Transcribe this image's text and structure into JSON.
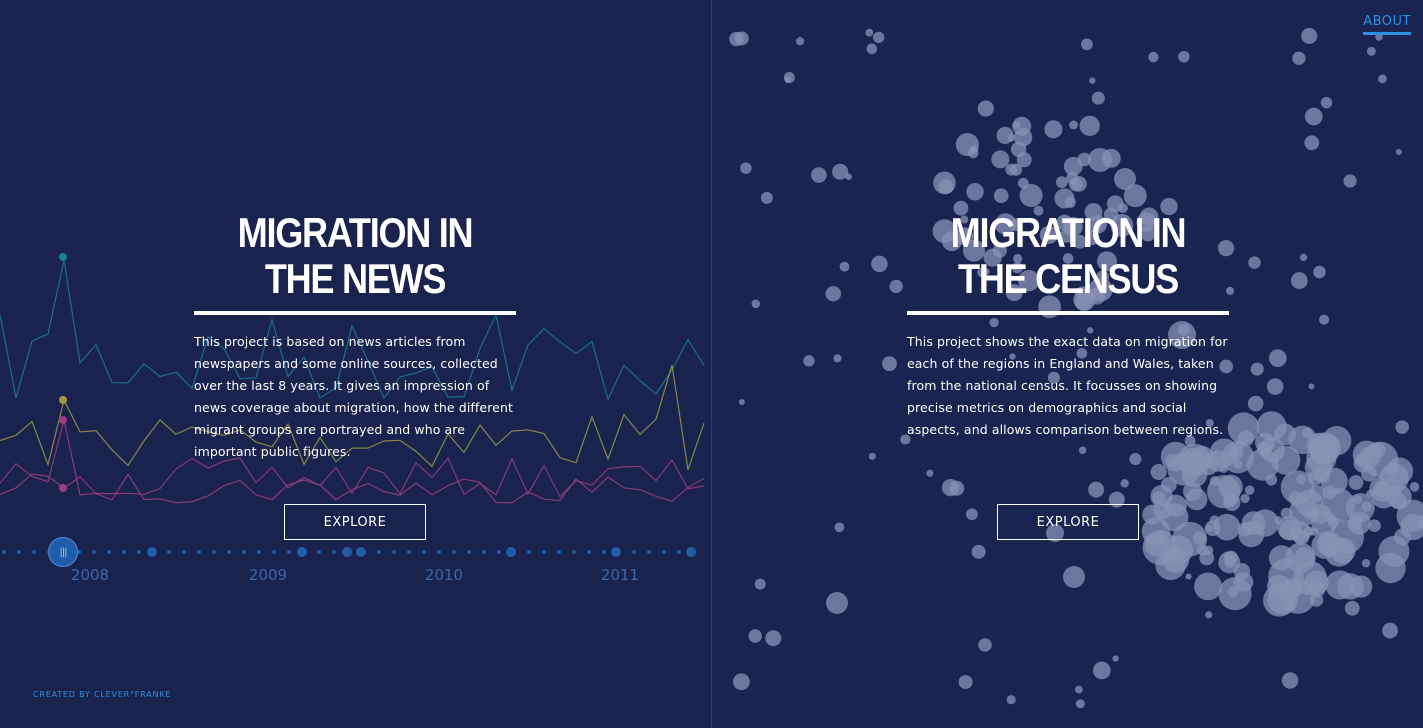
{
  "nav": {
    "about_label": "ABOUT"
  },
  "footer": {
    "credit": "CREATED BY CLEVER°FRANKE"
  },
  "news": {
    "title_line1": "MIGRATION IN",
    "title_line2": "THE NEWS",
    "description": "This project is based on news articles from newspapers and some online sources, collected over the last 8 years. It gives an impression of news coverage about migration, how the different migrant groups are portrayed and who are important public figures.",
    "explore_label": "EXPLORE",
    "timeline": {
      "years": [
        "2008",
        "2009",
        "2010",
        "2011"
      ],
      "handle_glyph": "|||"
    }
  },
  "census": {
    "title_line1": "MIGRATION IN",
    "title_line2": "THE CENSUS",
    "description": "This project shows the exact data on migration for each of the regions in England and Wales, taken from the national census. It focusses on showing precise metrics on demographics and social aspects, and allows comparison between regions.",
    "explore_label": "EXPLORE"
  },
  "colors": {
    "background": "#19234e",
    "accent": "#2f8fe0",
    "line_teal": "#1a7e94",
    "line_gold": "#a19845",
    "line_pink": "#9c3f7e",
    "bubble": "#8a92b5"
  }
}
